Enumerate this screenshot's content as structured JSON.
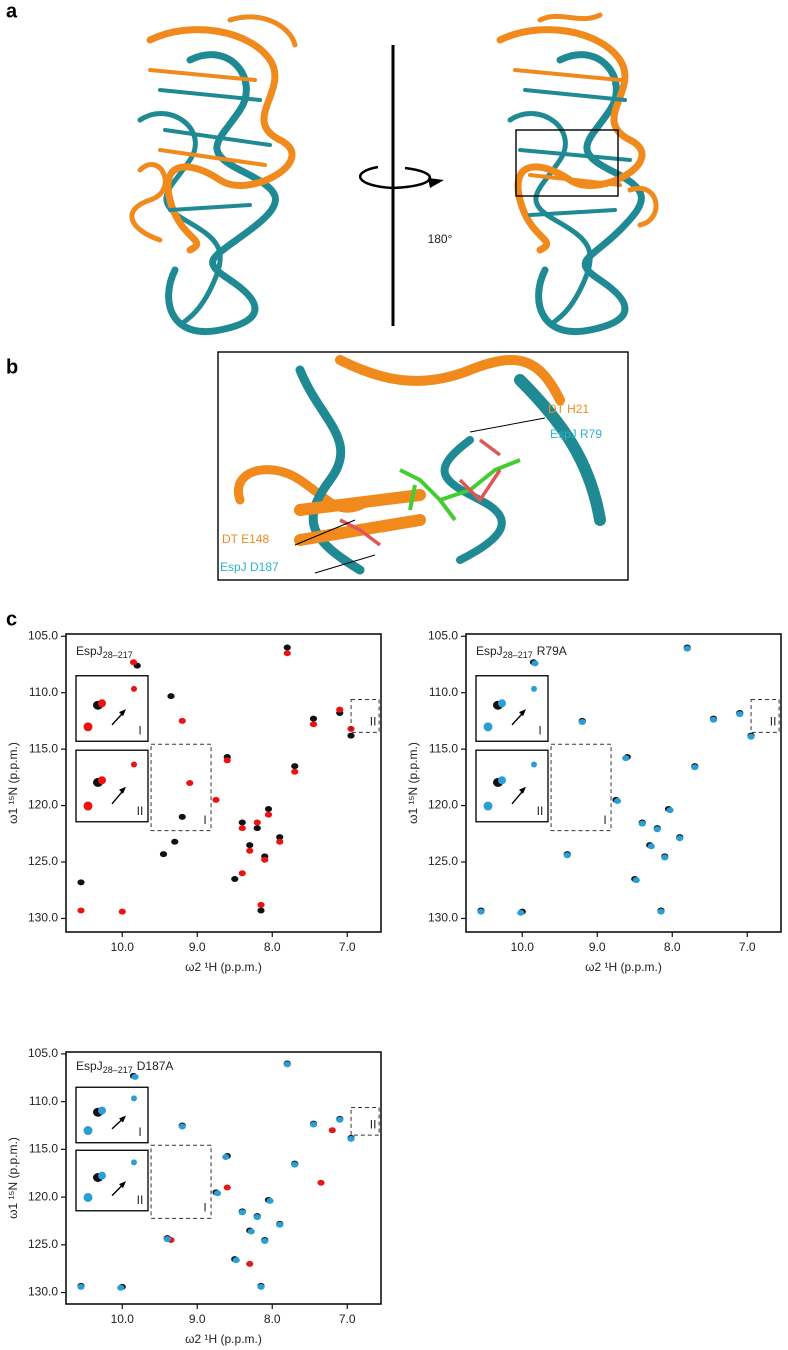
{
  "panels": {
    "a": {
      "label": "a",
      "rotation": "180°"
    },
    "b": {
      "label": "b",
      "annotations": [
        "DT H21",
        "EspJ R79",
        "DT E148",
        "EspJ D187"
      ]
    },
    "c": {
      "label": "c"
    }
  },
  "chart_data": [
    {
      "type": "scatter",
      "title_main": "EspJ",
      "title_subscript": "28–217",
      "xlabel": "ω2 ¹H (p.p.m.)",
      "ylabel": "ω1 ¹⁵N (p.p.m.)",
      "insets": [
        "I",
        "II"
      ],
      "xlim": [
        10.75,
        6.55
      ],
      "ylim": [
        131.2,
        104.8
      ],
      "xticks": [
        {
          "value": 10,
          "label": "10.0"
        },
        {
          "value": 9,
          "label": "9.0"
        },
        {
          "value": 8,
          "label": "8.0"
        },
        {
          "value": 7,
          "label": "7.0"
        }
      ],
      "yticks": [
        {
          "value": 105,
          "label": "105.0"
        },
        {
          "value": 110,
          "label": "110.0"
        },
        {
          "value": 115,
          "label": "115.0"
        },
        {
          "value": 120,
          "label": "120.0"
        },
        {
          "value": 125,
          "label": "125.0"
        },
        {
          "value": 130,
          "label": "130.0"
        }
      ],
      "series": [
        {
          "color": "#111111",
          "x": [
            10.55,
            9.8,
            9.35,
            9.2,
            9.3,
            8.6,
            8.4,
            8.3,
            8.2,
            8.1,
            8.05,
            7.9,
            7.8,
            7.7,
            7.45,
            7.1,
            6.95,
            8.5,
            9.45,
            8.15
          ],
          "y": [
            126.8,
            107.6,
            110.3,
            121.0,
            123.2,
            115.7,
            121.5,
            123.5,
            122.0,
            124.5,
            120.3,
            122.8,
            106.0,
            116.5,
            112.3,
            111.8,
            113.8,
            126.5,
            124.3,
            129.3
          ]
        },
        {
          "color": "#ee1111",
          "x": [
            10.55,
            10.0,
            9.85,
            9.2,
            8.75,
            8.6,
            8.4,
            8.3,
            8.2,
            8.1,
            8.05,
            7.9,
            7.8,
            7.7,
            7.45,
            7.1,
            6.95,
            8.4,
            9.1,
            8.15
          ],
          "y": [
            129.3,
            129.4,
            107.3,
            112.5,
            119.5,
            116.0,
            122.0,
            124.0,
            121.5,
            124.8,
            120.8,
            123.2,
            106.5,
            117.0,
            112.8,
            111.5,
            113.2,
            126.0,
            118.0,
            128.8
          ]
        }
      ]
    },
    {
      "type": "scatter",
      "title_main": "EspJ",
      "title_subscript": "28–217",
      "title_suffix": "R79A",
      "xlabel": "ω2 ¹H (p.p.m.)",
      "ylabel": "ω1 ¹⁵N (p.p.m.)",
      "insets": [
        "I",
        "II"
      ],
      "xlim": [
        10.75,
        6.55
      ],
      "ylim": [
        131.2,
        104.8
      ],
      "xticks": [
        {
          "value": 10,
          "label": "10.0"
        },
        {
          "value": 9,
          "label": "9.0"
        },
        {
          "value": 8,
          "label": "8.0"
        },
        {
          "value": 7,
          "label": "7.0"
        }
      ],
      "yticks": [
        {
          "value": 105,
          "label": "105.0"
        },
        {
          "value": 110,
          "label": "110.0"
        },
        {
          "value": 115,
          "label": "115.0"
        },
        {
          "value": 120,
          "label": "120.0"
        },
        {
          "value": 125,
          "label": "125.0"
        },
        {
          "value": 130,
          "label": "130.0"
        }
      ],
      "series": [
        {
          "color": "#111111",
          "x": [
            10.55,
            10.0,
            9.85,
            9.2,
            8.75,
            8.6,
            8.4,
            8.3,
            8.2,
            8.1,
            8.05,
            7.9,
            7.8,
            7.7,
            7.45,
            7.1,
            6.95,
            8.5,
            9.4,
            8.15
          ],
          "y": [
            129.3,
            129.4,
            107.3,
            112.5,
            119.5,
            115.7,
            121.5,
            123.5,
            122.0,
            124.5,
            120.3,
            122.8,
            106.0,
            116.5,
            112.3,
            111.8,
            113.8,
            126.5,
            124.3,
            129.3
          ]
        },
        {
          "color": "#2a9fd6",
          "x": [
            10.55,
            10.02,
            9.83,
            9.2,
            8.73,
            8.62,
            8.4,
            8.28,
            8.2,
            8.1,
            8.03,
            7.9,
            7.8,
            7.7,
            7.45,
            7.1,
            6.95,
            8.48,
            9.4,
            8.15
          ],
          "y": [
            129.4,
            129.5,
            107.4,
            112.6,
            119.6,
            115.8,
            121.6,
            123.6,
            122.1,
            124.6,
            120.4,
            122.9,
            106.1,
            116.6,
            112.4,
            111.9,
            113.9,
            126.6,
            124.4,
            129.4
          ]
        }
      ]
    },
    {
      "type": "scatter",
      "title_main": "EspJ",
      "title_subscript": "28–217",
      "title_suffix": "D187A",
      "xlabel": "ω2 ¹H (p.p.m.)",
      "ylabel": "ω1 ¹⁵N (p.p.m.)",
      "insets": [
        "I",
        "II"
      ],
      "xlim": [
        10.75,
        6.55
      ],
      "ylim": [
        131.2,
        104.8
      ],
      "xticks": [
        {
          "value": 10,
          "label": "10.0"
        },
        {
          "value": 9,
          "label": "9.0"
        },
        {
          "value": 8,
          "label": "8.0"
        },
        {
          "value": 7,
          "label": "7.0"
        }
      ],
      "yticks": [
        {
          "value": 105,
          "label": "105.0"
        },
        {
          "value": 110,
          "label": "110.0"
        },
        {
          "value": 115,
          "label": "115.0"
        },
        {
          "value": 120,
          "label": "120.0"
        },
        {
          "value": 125,
          "label": "125.0"
        },
        {
          "value": 130,
          "label": "130.0"
        }
      ],
      "series": [
        {
          "color": "#111111",
          "x": [
            10.55,
            10.0,
            9.85,
            9.2,
            8.75,
            8.6,
            8.4,
            8.3,
            8.2,
            8.1,
            8.05,
            7.9,
            7.8,
            7.7,
            7.45,
            7.1,
            6.95,
            8.5,
            9.4,
            8.15
          ],
          "y": [
            129.3,
            129.4,
            107.3,
            112.5,
            119.5,
            115.7,
            121.5,
            123.5,
            122.0,
            124.5,
            120.3,
            122.8,
            106.0,
            116.5,
            112.3,
            111.8,
            113.8,
            126.5,
            124.3,
            129.3
          ]
        },
        {
          "color": "#e01b1b",
          "x": [
            9.35,
            8.6,
            8.3,
            7.35,
            7.2
          ],
          "y": [
            124.5,
            119.0,
            127.0,
            118.5,
            113.0
          ]
        },
        {
          "color": "#2a9fd6",
          "x": [
            10.55,
            10.02,
            9.83,
            9.2,
            8.73,
            8.62,
            8.4,
            8.28,
            8.2,
            8.1,
            8.03,
            7.9,
            7.8,
            7.7,
            7.45,
            7.1,
            6.95,
            8.48,
            9.4,
            8.15
          ],
          "y": [
            129.4,
            129.5,
            107.4,
            112.6,
            119.6,
            115.8,
            121.6,
            123.6,
            122.1,
            124.6,
            120.4,
            122.9,
            106.1,
            116.6,
            112.4,
            111.9,
            113.9,
            126.6,
            124.4,
            129.4
          ]
        }
      ]
    }
  ]
}
